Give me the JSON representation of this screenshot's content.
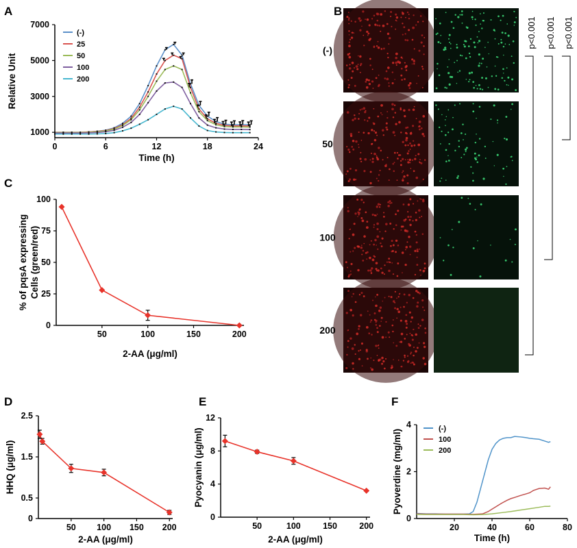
{
  "panel_labels": {
    "A": "A",
    "B": "B",
    "C": "C",
    "D": "D",
    "E": "E",
    "F": "F"
  },
  "colors": {
    "neg": "#5b8fc9",
    "c25": "#d9534f",
    "c50": "#9bbb59",
    "c100": "#7f5f9f",
    "c200": "#47b7cf",
    "red_marker": "#e8332a",
    "f_neg": "#4f93c9",
    "f_100": "#c0504d",
    "f_200": "#9bbb59"
  },
  "panel_b": {
    "row_labels": [
      "(-)",
      "50",
      "100",
      "200"
    ],
    "pvalues": [
      "p<0.001",
      "p<0.001",
      "p<0.001"
    ],
    "channels": [
      "red-fluorescence",
      "green-fluorescence"
    ],
    "green_density": [
      1.0,
      0.55,
      0.15,
      0.0
    ]
  },
  "chart_data": [
    {
      "panel": "A",
      "type": "line",
      "xlabel": "Time (h)",
      "ylabel": "Relative Unit",
      "xlim": [
        0,
        24
      ],
      "ylim": [
        700,
        7000
      ],
      "xticks": [
        0,
        6,
        12,
        18,
        24
      ],
      "yticks": [
        1000,
        3000,
        5000,
        7000
      ],
      "legend_position": "top-left",
      "x": [
        0,
        1,
        2,
        3,
        4,
        5,
        6,
        7,
        8,
        9,
        10,
        11,
        12,
        13,
        14,
        15,
        16,
        17,
        18,
        19,
        20,
        21,
        22,
        23
      ],
      "series": [
        {
          "name": "(-)",
          "color": "#5b8fc9",
          "values": [
            1000,
            1000,
            1000,
            1000,
            1020,
            1060,
            1120,
            1250,
            1500,
            1900,
            2600,
            3600,
            4700,
            5600,
            5900,
            5300,
            3700,
            2500,
            1900,
            1600,
            1450,
            1420,
            1430,
            1420
          ]
        },
        {
          "name": "25",
          "color": "#d9534f",
          "values": [
            1000,
            1000,
            1000,
            1000,
            1020,
            1050,
            1100,
            1210,
            1420,
            1780,
            2400,
            3250,
            4250,
            5000,
            5300,
            5100,
            3500,
            2300,
            1750,
            1500,
            1380,
            1350,
            1360,
            1350
          ]
        },
        {
          "name": "50",
          "color": "#9bbb59",
          "values": [
            990,
            990,
            990,
            990,
            1000,
            1030,
            1080,
            1180,
            1380,
            1700,
            2250,
            3000,
            3850,
            4500,
            4700,
            4500,
            3200,
            2150,
            1650,
            1420,
            1320,
            1300,
            1300,
            1290
          ]
        },
        {
          "name": "100",
          "color": "#7f5f9f",
          "values": [
            960,
            960,
            960,
            960,
            970,
            990,
            1030,
            1110,
            1280,
            1550,
            2000,
            2650,
            3300,
            3750,
            3800,
            3500,
            2600,
            1800,
            1400,
            1250,
            1180,
            1160,
            1160,
            1150
          ]
        },
        {
          "name": "200",
          "color": "#47b7cf",
          "values": [
            900,
            900,
            900,
            900,
            900,
            910,
            930,
            980,
            1080,
            1230,
            1450,
            1700,
            2000,
            2300,
            2450,
            2300,
            1800,
            1350,
            1100,
            1020,
            990,
            980,
            980,
            980
          ]
        }
      ],
      "error_bars_on": [
        "(-)",
        "25"
      ]
    },
    {
      "panel": "C",
      "type": "line",
      "xlabel": "2-AA (μg/ml)",
      "ylabel_lines": [
        "% of pqsA expressing",
        "Cells (green/red)"
      ],
      "xlim": [
        0,
        205
      ],
      "ylim": [
        0,
        100
      ],
      "xticks": [
        50,
        100,
        150,
        200
      ],
      "yticks": [
        0,
        25,
        50,
        75,
        100
      ],
      "x": [
        6,
        50,
        100,
        200
      ],
      "values": [
        94,
        28,
        8,
        0
      ],
      "errors": [
        1,
        1,
        4,
        0
      ],
      "marker": "diamond"
    },
    {
      "panel": "D",
      "type": "line",
      "xlabel": "2-AA (μg/ml)",
      "ylabel": "HHQ (μg/ml)",
      "xlim": [
        0,
        205
      ],
      "ylim": [
        0,
        2.5
      ],
      "xticks": [
        50,
        100,
        150,
        200
      ],
      "yticks": [
        0,
        0.5,
        1.5,
        2.5
      ],
      "ytick_labels": [
        "0",
        "0.5",
        "1.5",
        "2.5"
      ],
      "x": [
        2,
        6,
        50,
        100,
        200
      ],
      "values": [
        2.05,
        1.88,
        1.22,
        1.12,
        0.15
      ],
      "errors": [
        0.1,
        0.07,
        0.1,
        0.08,
        0.05
      ],
      "marker": "diamond"
    },
    {
      "panel": "E",
      "type": "line",
      "xlabel": "2-AA (μg/ml)",
      "ylabel": "Pyocyanin (μg/ml)",
      "xlim": [
        0,
        205
      ],
      "ylim": [
        0,
        12
      ],
      "xticks": [
        50,
        100,
        150,
        200
      ],
      "yticks": [
        0,
        4,
        8,
        12
      ],
      "x": [
        6,
        50,
        100,
        200
      ],
      "values": [
        9.2,
        7.9,
        6.8,
        3.2
      ],
      "errors": [
        0.7,
        0.2,
        0.4,
        0.1
      ],
      "marker": "diamond"
    },
    {
      "panel": "F",
      "type": "line",
      "xlabel": "Time (h)",
      "ylabel": "Pyoverdine (mg/ml)",
      "xlim": [
        0,
        80
      ],
      "ylim": [
        0,
        4
      ],
      "xticks": [
        20,
        40,
        60,
        80
      ],
      "yticks": [
        0,
        2,
        4
      ],
      "legend_position": "top-left",
      "series": [
        {
          "name": "(-)",
          "color": "#4f93c9",
          "x": [
            0,
            5,
            10,
            15,
            20,
            25,
            28,
            30,
            32,
            34,
            36,
            38,
            40,
            42,
            44,
            46,
            48,
            50,
            52,
            55,
            58,
            60,
            62,
            65,
            68,
            70,
            71
          ],
          "values": [
            0.22,
            0.2,
            0.2,
            0.19,
            0.19,
            0.19,
            0.2,
            0.3,
            0.7,
            1.3,
            1.9,
            2.5,
            2.95,
            3.2,
            3.35,
            3.42,
            3.45,
            3.45,
            3.5,
            3.48,
            3.45,
            3.42,
            3.4,
            3.38,
            3.3,
            3.25,
            3.28
          ]
        },
        {
          "name": "100",
          "color": "#c0504d",
          "x": [
            0,
            5,
            10,
            15,
            20,
            25,
            30,
            35,
            38,
            40,
            42,
            45,
            48,
            50,
            52,
            55,
            58,
            60,
            62,
            65,
            68,
            70,
            71
          ],
          "values": [
            0.2,
            0.19,
            0.19,
            0.19,
            0.19,
            0.19,
            0.18,
            0.2,
            0.3,
            0.4,
            0.5,
            0.65,
            0.78,
            0.85,
            0.9,
            0.98,
            1.05,
            1.1,
            1.2,
            1.28,
            1.3,
            1.25,
            1.35
          ]
        },
        {
          "name": "200",
          "color": "#9bbb59",
          "x": [
            0,
            5,
            10,
            15,
            20,
            25,
            30,
            35,
            40,
            45,
            50,
            55,
            60,
            65,
            68,
            70,
            71
          ],
          "values": [
            0.18,
            0.17,
            0.17,
            0.17,
            0.17,
            0.17,
            0.16,
            0.17,
            0.2,
            0.25,
            0.3,
            0.36,
            0.42,
            0.48,
            0.52,
            0.52,
            0.53
          ]
        }
      ]
    }
  ]
}
